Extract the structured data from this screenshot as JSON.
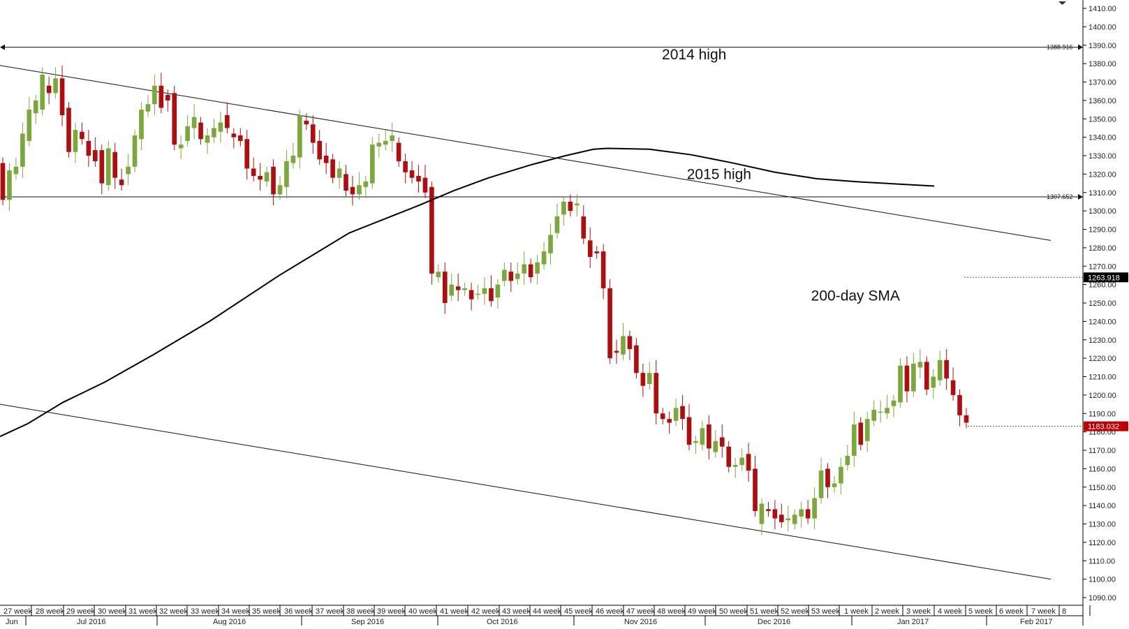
{
  "chart_data": {
    "type": "candlestick",
    "price_axis": {
      "min": 1085,
      "max": 1415,
      "ticks": [
        "1410.00",
        "1400.00",
        "1390.00",
        "1380.00",
        "1370.00",
        "1360.00",
        "1350.00",
        "1340.00",
        "1330.00",
        "1320.00",
        "1310.00",
        "1300.00",
        "1290.00",
        "1280.00",
        "1270.00",
        "1260.00",
        "1250.00",
        "1240.00",
        "1230.00",
        "1220.00",
        "1210.00",
        "1200.00",
        "1190.00",
        "1180.00",
        "1170.00",
        "1160.00",
        "1150.00",
        "1140.00",
        "1130.00",
        "1120.00",
        "1110.00",
        "1100.00",
        "1090.00"
      ],
      "side": "right"
    },
    "time_axis": {
      "weeks": [
        "27 week",
        "28 week",
        "29 week",
        "30 week",
        "31 week",
        "32 week",
        "33 week",
        "34 week",
        "35 week",
        "36 week",
        "37 week",
        "38 week",
        "39 week",
        "40 week",
        "41 week",
        "42 week",
        "43 week",
        "44 week",
        "45 week",
        "46 week",
        "47 week",
        "48 week",
        "49 week",
        "50 week",
        "51 week",
        "52 week",
        "53 week",
        "1 week",
        "2 week",
        "3 week",
        "4 week",
        "5 week",
        "6 week",
        "7 week",
        "8"
      ],
      "months": [
        "Jun",
        "Jul 2016",
        "Aug 2016",
        "Sep 2016",
        "Oct 2016",
        "Nov 2016",
        "Dec 2016",
        "Jan 2017",
        "Feb 2017"
      ]
    },
    "bar_interval": "daily",
    "candles": [
      [
        1326,
        1306
      ],
      [
        1306,
        1322
      ],
      [
        1320,
        1324
      ],
      [
        1324,
        1342
      ],
      [
        1338,
        1355
      ],
      [
        1353,
        1360
      ],
      [
        1355,
        1374
      ],
      [
        1368,
        1364
      ],
      [
        1364,
        1372
      ],
      [
        1372,
        1352
      ],
      [
        1356,
        1332
      ],
      [
        1332,
        1344
      ],
      [
        1343,
        1339
      ],
      [
        1338,
        1330
      ],
      [
        1333,
        1327
      ],
      [
        1333,
        1315
      ],
      [
        1314,
        1334
      ],
      [
        1332,
        1318
      ],
      [
        1317,
        1314
      ],
      [
        1320,
        1324
      ],
      [
        1324,
        1341
      ],
      [
        1339,
        1355
      ],
      [
        1354,
        1358
      ],
      [
        1358,
        1368
      ],
      [
        1368,
        1356
      ],
      [
        1363,
        1360
      ],
      [
        1364,
        1336
      ],
      [
        1334,
        1336
      ],
      [
        1338,
        1346
      ],
      [
        1345,
        1351
      ],
      [
        1348,
        1339
      ],
      [
        1337,
        1341
      ],
      [
        1340,
        1345
      ],
      [
        1343,
        1348
      ],
      [
        1352,
        1345
      ],
      [
        1342,
        1340
      ],
      [
        1341,
        1338
      ],
      [
        1339,
        1323
      ],
      [
        1323,
        1319
      ],
      [
        1319,
        1317
      ],
      [
        1316,
        1321
      ],
      [
        1324,
        1309
      ],
      [
        1309,
        1314
      ],
      [
        1313,
        1327
      ],
      [
        1326,
        1330
      ],
      [
        1329,
        1352
      ],
      [
        1349,
        1347
      ],
      [
        1347,
        1337
      ],
      [
        1338,
        1328
      ],
      [
        1330,
        1326
      ],
      [
        1328,
        1318
      ],
      [
        1318,
        1323
      ],
      [
        1320,
        1311
      ],
      [
        1313,
        1309
      ],
      [
        1309,
        1314
      ],
      [
        1313,
        1316
      ],
      [
        1315,
        1336
      ],
      [
        1335,
        1337
      ],
      [
        1336,
        1338
      ],
      [
        1338,
        1341
      ],
      [
        1337,
        1327
      ],
      [
        1327,
        1321
      ],
      [
        1322,
        1318
      ],
      [
        1319,
        1316
      ],
      [
        1318,
        1310
      ],
      [
        1313,
        1266
      ],
      [
        1264,
        1267
      ],
      [
        1267,
        1250
      ],
      [
        1254,
        1260
      ],
      [
        1259,
        1257
      ],
      [
        1257,
        1258
      ],
      [
        1257,
        1252
      ],
      [
        1255,
        1255
      ],
      [
        1255,
        1258
      ],
      [
        1258,
        1251
      ],
      [
        1253,
        1260
      ],
      [
        1262,
        1268
      ],
      [
        1267,
        1262
      ],
      [
        1263,
        1266
      ],
      [
        1266,
        1271
      ],
      [
        1271,
        1264
      ],
      [
        1266,
        1272
      ],
      [
        1271,
        1278
      ],
      [
        1277,
        1287
      ],
      [
        1288,
        1297
      ],
      [
        1298,
        1305
      ],
      [
        1305,
        1300
      ],
      [
        1303,
        1304
      ],
      [
        1297,
        1285
      ],
      [
        1284,
        1275
      ],
      [
        1278,
        1277
      ],
      [
        1278,
        1258
      ],
      [
        1258,
        1220
      ],
      [
        1224,
        1223
      ],
      [
        1222,
        1232
      ],
      [
        1232,
        1225
      ],
      [
        1227,
        1212
      ],
      [
        1212,
        1205
      ],
      [
        1206,
        1212
      ],
      [
        1212,
        1190
      ],
      [
        1190,
        1187
      ],
      [
        1187,
        1185
      ],
      [
        1186,
        1193
      ],
      [
        1194,
        1187
      ],
      [
        1188,
        1173
      ],
      [
        1174,
        1175
      ],
      [
        1173,
        1182
      ],
      [
        1184,
        1171
      ],
      [
        1169,
        1175
      ],
      [
        1177,
        1172
      ],
      [
        1172,
        1161
      ],
      [
        1161,
        1162
      ],
      [
        1162,
        1166
      ],
      [
        1168,
        1159
      ],
      [
        1160,
        1137
      ],
      [
        1130,
        1141
      ],
      [
        1138,
        1137
      ],
      [
        1138,
        1133
      ],
      [
        1135,
        1131
      ],
      [
        1132,
        1133
      ],
      [
        1130,
        1135
      ],
      [
        1134,
        1138
      ],
      [
        1138,
        1133
      ],
      [
        1133,
        1144
      ],
      [
        1144,
        1159
      ],
      [
        1160,
        1150
      ],
      [
        1150,
        1152
      ],
      [
        1152,
        1161
      ],
      [
        1162,
        1167
      ],
      [
        1167,
        1184
      ],
      [
        1185,
        1173
      ],
      [
        1175,
        1187
      ],
      [
        1186,
        1192
      ],
      [
        1191,
        1191
      ],
      [
        1190,
        1193
      ],
      [
        1194,
        1197
      ],
      [
        1196,
        1216
      ],
      [
        1216,
        1202
      ],
      [
        1202,
        1217
      ],
      [
        1215,
        1218
      ],
      [
        1218,
        1203
      ],
      [
        1204,
        1210
      ],
      [
        1208,
        1219
      ],
      [
        1219,
        1209
      ],
      [
        1208,
        1200
      ],
      [
        1200,
        1189
      ],
      [
        1189,
        1185
      ]
    ],
    "moving_average": {
      "name": "200-day SMA",
      "points": [
        [
          0,
          1177.5
        ],
        [
          40,
          1184.5
        ],
        [
          90,
          1196
        ],
        [
          150,
          1207
        ],
        [
          220,
          1222
        ],
        [
          300,
          1240
        ],
        [
          400,
          1265
        ],
        [
          500,
          1288
        ],
        [
          600,
          1303
        ],
        [
          650,
          1311
        ],
        [
          700,
          1318
        ],
        [
          760,
          1325
        ],
        [
          810,
          1330
        ],
        [
          850,
          1333.5
        ],
        [
          870,
          1334
        ],
        [
          930,
          1333.5
        ],
        [
          990,
          1330.5
        ],
        [
          1050,
          1326
        ],
        [
          1110,
          1321
        ],
        [
          1170,
          1317.5
        ],
        [
          1230,
          1315.8
        ],
        [
          1290,
          1314.5
        ],
        [
          1338,
          1313.5
        ]
      ]
    },
    "trendlines": [
      {
        "name": "upper-channel",
        "from": [
          0,
          1379
        ],
        "to": [
          1505,
          1284
        ]
      },
      {
        "name": "lower-channel",
        "from": [
          0,
          1195
        ],
        "to": [
          1505,
          1100
        ]
      }
    ],
    "levels": [
      {
        "name": "2014 high",
        "value": 1388.916,
        "label": "1388.916"
      },
      {
        "name": "2015 high",
        "value": 1307.652,
        "label": "1307.652"
      }
    ],
    "annotations": [
      {
        "text": "2014 high",
        "price": 1385,
        "x_frac": 0.641
      },
      {
        "text": "2015 high",
        "price": 1320,
        "x_frac": 0.664
      },
      {
        "text": "200-day SMA",
        "price": 1254,
        "x_frac": 0.79
      }
    ],
    "price_tags": [
      {
        "value": 1263.918,
        "label": "1263.918",
        "color": "#000000"
      },
      {
        "value": 1183.032,
        "label": "1183.032",
        "color": "#c00000"
      }
    ],
    "colors": {
      "up": "#7aa83a",
      "down": "#b00e0e",
      "line": "#000000"
    }
  }
}
